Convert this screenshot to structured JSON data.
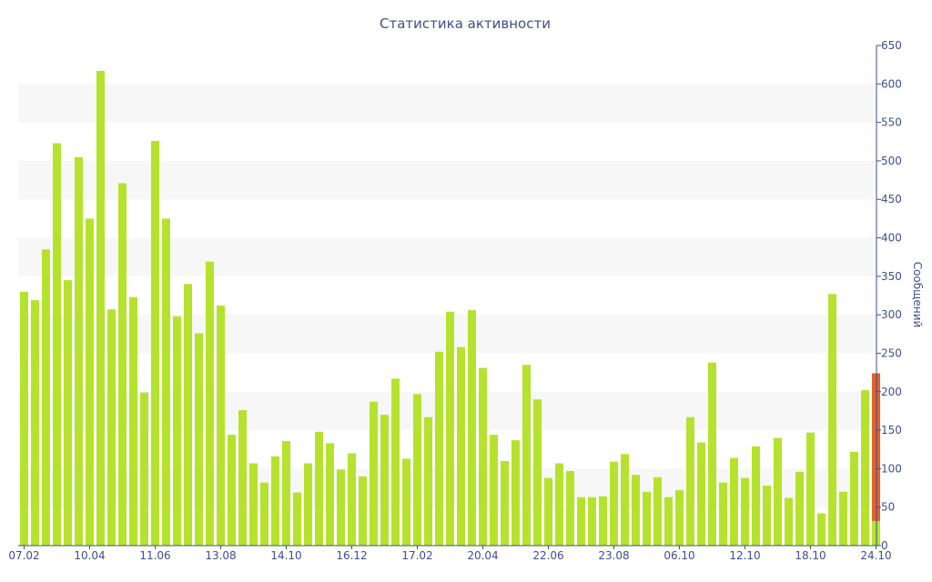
{
  "chart_data": {
    "type": "bar",
    "title": "Статистика активности",
    "xlabel": "",
    "ylabel": "Сообщений",
    "ylim": [
      0,
      650
    ],
    "y_ticks": [
      0,
      50,
      100,
      150,
      200,
      250,
      300,
      350,
      400,
      450,
      500,
      550,
      600,
      650
    ],
    "y_axis_position": "right",
    "x_tick_labels": [
      "07.02",
      "10.04",
      "11.06",
      "13.08",
      "14.10",
      "16.12",
      "17.02",
      "20.04",
      "22.06",
      "23.08",
      "06.10",
      "12.10",
      "18.10",
      "24.10"
    ],
    "x_tick_bar_index": [
      0,
      6,
      12,
      18,
      24,
      30,
      36,
      42,
      48,
      54,
      60,
      66,
      72,
      78
    ],
    "values": [
      330,
      319,
      385,
      523,
      345,
      505,
      425,
      617,
      307,
      471,
      323,
      199,
      526,
      425,
      298,
      340,
      276,
      369,
      312,
      144,
      176,
      107,
      82,
      116,
      136,
      69,
      107,
      148,
      133,
      99,
      120,
      90,
      187,
      170,
      217,
      113,
      197,
      167,
      252,
      304,
      258,
      306,
      231,
      144,
      110,
      137,
      235,
      190,
      88,
      107,
      97,
      63,
      63,
      64,
      109,
      119,
      92,
      70,
      89,
      63,
      72,
      167,
      134,
      238,
      82,
      114,
      88,
      129,
      78,
      140,
      62,
      96,
      147,
      42,
      327,
      70,
      122,
      202,
      224
    ],
    "highlight_last": {
      "total": 224,
      "base": 32
    },
    "colors": {
      "bar": "#b5e32d",
      "highlight": "#e0622a",
      "axis_text": "#3e4f8c",
      "band": "#f7f7f7"
    }
  }
}
